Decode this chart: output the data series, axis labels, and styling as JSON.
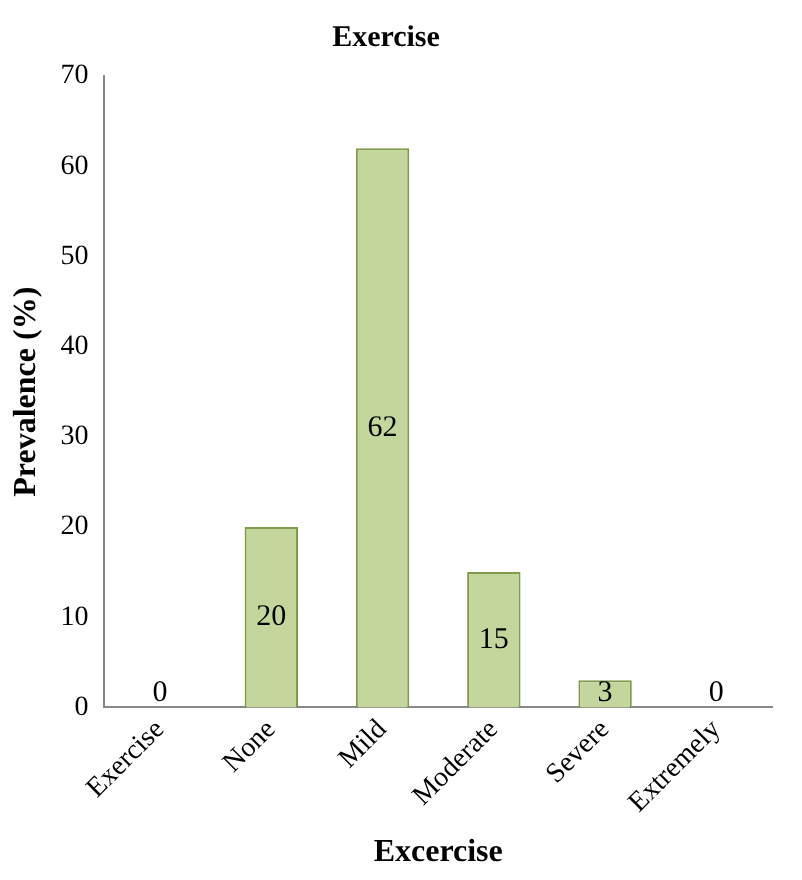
{
  "chart_data": {
    "type": "bar",
    "title": "Exercise",
    "xlabel": "Excercise",
    "ylabel": "Prevalence (%)",
    "categories": [
      "Exercise",
      "None",
      "Mild",
      "Moderate",
      "Severe",
      "Extremely"
    ],
    "values": [
      0,
      20,
      62,
      15,
      3,
      0
    ],
    "color": "#c3d69b",
    "ylim": [
      0,
      70
    ],
    "yticks": [
      0,
      10,
      20,
      30,
      40,
      50,
      60,
      70
    ],
    "grid": false,
    "legend": false,
    "data_labels": true
  }
}
